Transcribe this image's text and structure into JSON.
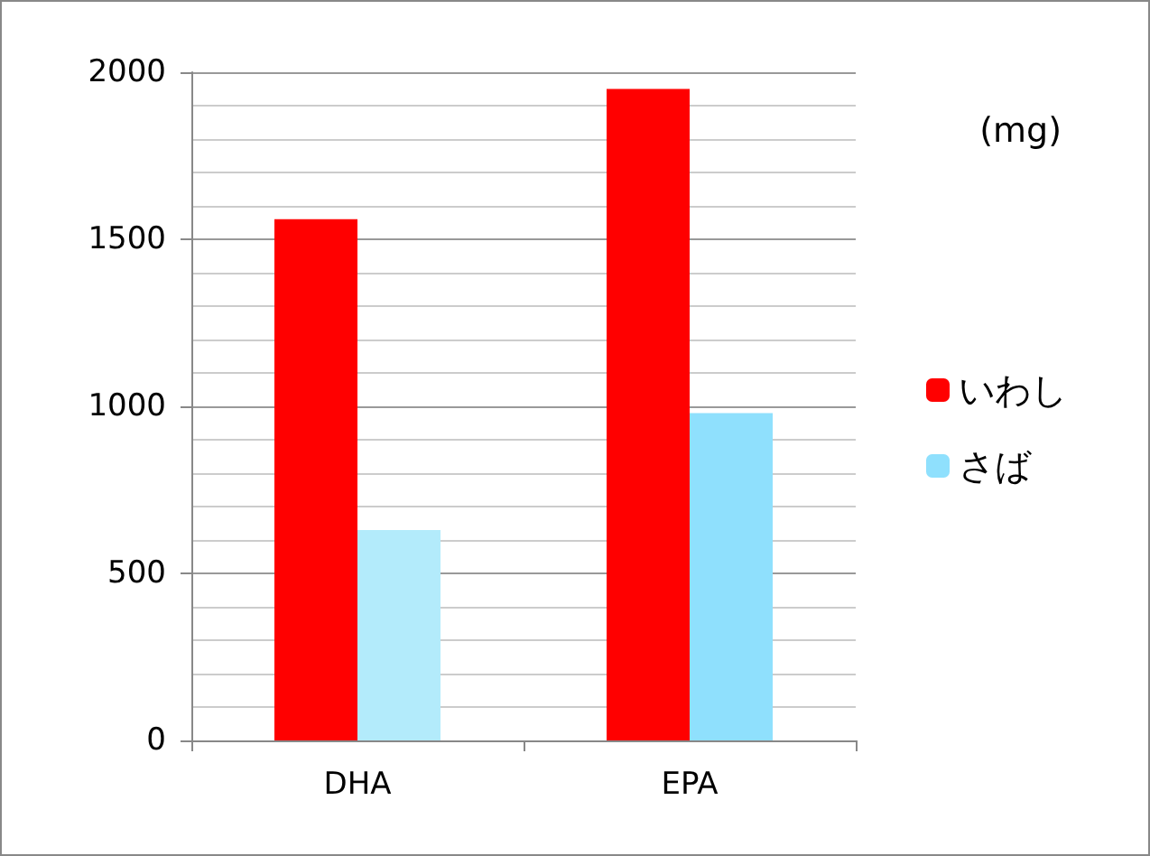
{
  "chart_data": {
    "type": "bar",
    "categories": [
      "DHA",
      "EPA"
    ],
    "series": [
      {
        "name": "いわし",
        "color": "#ff0000",
        "values": [
          1560,
          1950
        ]
      },
      {
        "name": "さば",
        "color": "#8fe0fd",
        "colors": [
          "#b3ebfb",
          "#8fe0fd"
        ],
        "values": [
          630,
          980
        ]
      }
    ],
    "ylim": [
      0,
      2000
    ],
    "yticks": [
      0,
      500,
      1000,
      1500,
      2000
    ],
    "grid": "y",
    "legend": "right",
    "annotations": [
      "(mg)"
    ]
  }
}
